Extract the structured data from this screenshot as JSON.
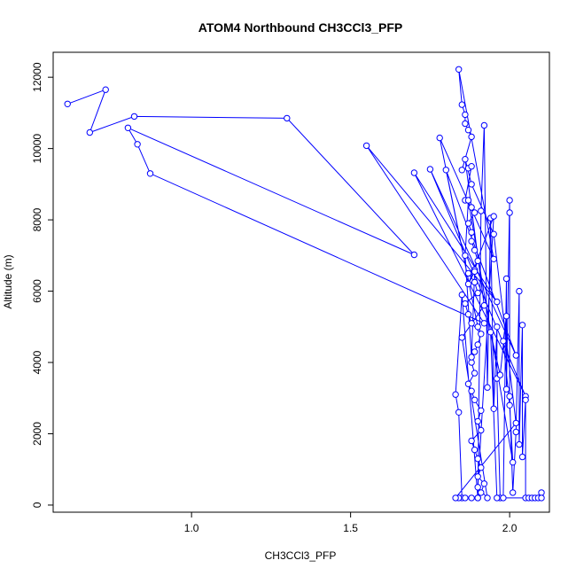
{
  "chart_data": {
    "type": "line",
    "title": "ATOM4 Northbound CH3CCl3_PFP",
    "xlabel": "CH3CCl3_PFP",
    "ylabel": "Altitude (m)",
    "xlim": [
      0.565,
      2.125
    ],
    "ylim": [
      -200,
      12700
    ],
    "x_ticks": [
      1.0,
      1.5,
      2.0
    ],
    "x_tick_labels": [
      "1.0",
      "1.5",
      "2.0"
    ],
    "y_ticks": [
      0,
      2000,
      4000,
      6000,
      8000,
      10000,
      12000
    ],
    "y_tick_labels": [
      "0",
      "2000",
      "4000",
      "6000",
      "8000",
      "10000",
      "12000"
    ],
    "grid": false,
    "marker": "open-circle",
    "color": "#0000ff",
    "series": [
      {
        "points": [
          [
            0.61,
            11250
          ],
          [
            0.73,
            11650
          ],
          [
            0.68,
            10450
          ],
          [
            0.82,
            10900
          ],
          [
            1.3,
            10850
          ],
          [
            1.7,
            7020
          ],
          [
            0.8,
            10580
          ],
          [
            0.83,
            10120
          ],
          [
            0.87,
            9300
          ],
          [
            1.92,
            5100
          ],
          [
            1.55,
            10080
          ],
          [
            1.96,
            5700
          ],
          [
            1.7,
            9320
          ],
          [
            2.05,
            3050
          ],
          [
            1.75,
            9420
          ],
          [
            2.02,
            4200
          ],
          [
            1.8,
            9400
          ],
          [
            1.9,
            5000
          ],
          [
            1.78,
            10300
          ],
          [
            1.95,
            6900
          ],
          [
            1.84,
            12220
          ],
          [
            1.85,
            11230
          ],
          [
            1.86,
            10950
          ],
          [
            1.86,
            10700
          ],
          [
            1.87,
            10520
          ],
          [
            1.88,
            10330
          ],
          [
            1.85,
            9400
          ],
          [
            1.87,
            9450
          ],
          [
            1.88,
            9500
          ],
          [
            1.86,
            8550
          ],
          [
            1.88,
            8350
          ],
          [
            1.89,
            8200
          ],
          [
            1.87,
            7900
          ],
          [
            1.88,
            7650
          ],
          [
            1.88,
            7400
          ],
          [
            1.89,
            7150
          ],
          [
            1.9,
            6850
          ],
          [
            1.89,
            6600
          ],
          [
            1.87,
            6500
          ],
          [
            1.89,
            6250
          ],
          [
            1.9,
            5950
          ],
          [
            1.86,
            5650
          ],
          [
            1.87,
            5350
          ],
          [
            1.88,
            5100
          ],
          [
            1.91,
            4800
          ],
          [
            1.9,
            4500
          ],
          [
            1.89,
            4300
          ],
          [
            1.88,
            4000
          ],
          [
            1.89,
            3700
          ],
          [
            1.87,
            3400
          ],
          [
            1.88,
            3200
          ],
          [
            1.89,
            2950
          ],
          [
            1.91,
            2650
          ],
          [
            1.9,
            2350
          ],
          [
            1.91,
            2100
          ],
          [
            1.88,
            1800
          ],
          [
            1.89,
            1550
          ],
          [
            1.9,
            1300
          ],
          [
            1.91,
            1050
          ],
          [
            1.9,
            800
          ],
          [
            1.92,
            600
          ],
          [
            1.91,
            350
          ],
          [
            1.9,
            200
          ],
          [
            1.85,
            5900
          ],
          [
            1.83,
            3100
          ],
          [
            1.84,
            2600
          ],
          [
            1.85,
            200
          ],
          [
            1.84,
            200
          ],
          [
            1.86,
            200
          ],
          [
            1.88,
            200
          ],
          [
            1.9,
            200
          ],
          [
            1.91,
            8250
          ],
          [
            1.92,
            10650
          ],
          [
            1.93,
            3300
          ],
          [
            1.94,
            8050
          ],
          [
            1.95,
            2700
          ],
          [
            1.96,
            5000
          ],
          [
            1.96,
            3550
          ],
          [
            1.97,
            200
          ],
          [
            1.98,
            200
          ],
          [
            1.99,
            6350
          ],
          [
            1.99,
            3250
          ],
          [
            2.0,
            8550
          ],
          [
            2.0,
            8200
          ],
          [
            2.0,
            3050
          ],
          [
            2.01,
            350
          ],
          [
            2.02,
            2050
          ],
          [
            2.03,
            6000
          ],
          [
            2.03,
            1700
          ],
          [
            2.04,
            5050
          ],
          [
            2.04,
            1350
          ],
          [
            2.05,
            2950
          ],
          [
            2.05,
            200
          ],
          [
            2.06,
            200
          ],
          [
            2.07,
            200
          ],
          [
            2.08,
            200
          ],
          [
            2.09,
            200
          ],
          [
            2.1,
            350
          ],
          [
            2.1,
            200
          ],
          [
            1.96,
            200
          ],
          [
            1.94,
            4850
          ],
          [
            1.97,
            3650
          ],
          [
            1.99,
            5300
          ],
          [
            1.98,
            4600
          ],
          [
            2.0,
            2800
          ],
          [
            2.01,
            1200
          ],
          [
            1.87,
            8550
          ],
          [
            1.86,
            7000
          ],
          [
            1.88,
            4150
          ],
          [
            1.89,
            6550
          ],
          [
            1.87,
            6200
          ],
          [
            1.95,
            8100
          ],
          [
            1.9,
            500
          ],
          [
            1.93,
            200
          ],
          [
            1.85,
            4700
          ],
          [
            1.92,
            5600
          ],
          [
            1.86,
            9700
          ],
          [
            1.88,
            9000
          ],
          [
            1.95,
            7600
          ],
          [
            2.02,
            2300
          ],
          [
            1.83,
            200
          ]
        ]
      }
    ]
  }
}
